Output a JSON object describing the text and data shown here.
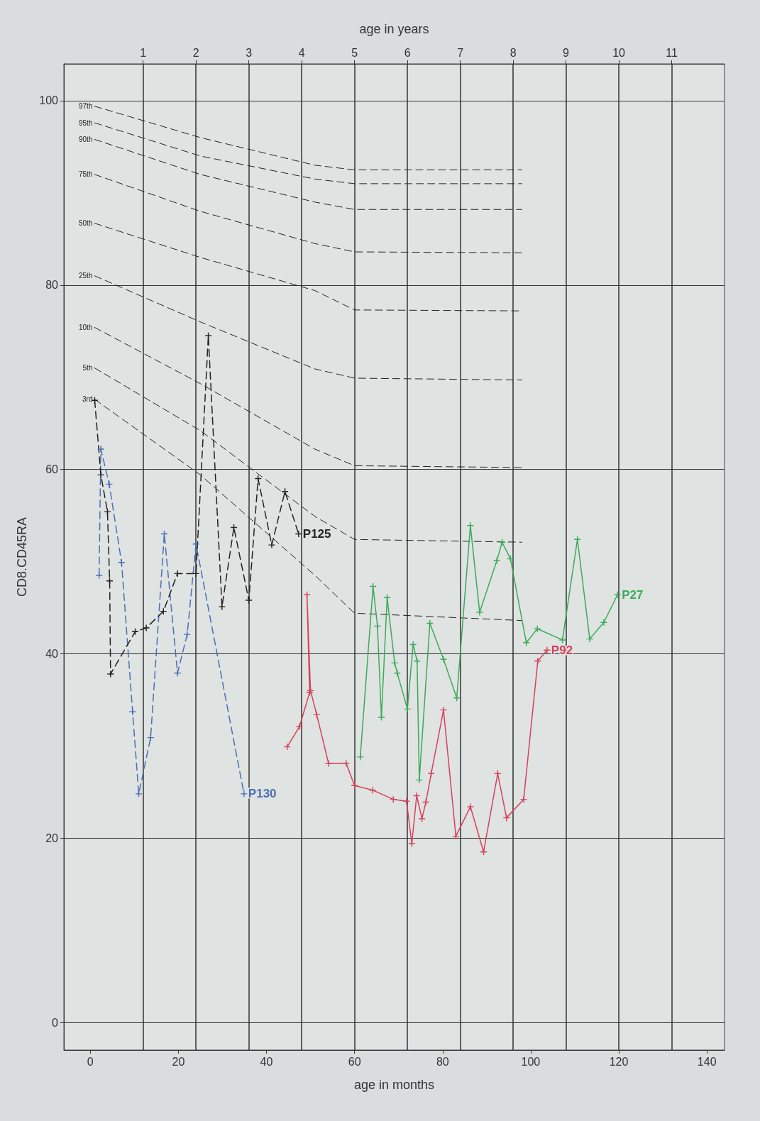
{
  "chart_data": {
    "type": "line",
    "xlabel": "age in months",
    "ylabel": "CD8.CD45RA",
    "x2label": "age in years",
    "xlim": [
      -6,
      144
    ],
    "xticks": [
      0,
      20,
      40,
      60,
      80,
      100,
      120,
      140
    ],
    "x2lim": [
      -0.5,
      12
    ],
    "x2ticks": [
      1,
      2,
      3,
      4,
      5,
      6,
      7,
      8,
      9,
      10,
      11
    ],
    "ylim": [
      -3,
      104
    ],
    "yticks": [
      0,
      20,
      40,
      60,
      80,
      100
    ],
    "grid": true,
    "series": [
      {
        "name": "97th",
        "color": "#222222",
        "line_style": "dashed",
        "marker": "none",
        "x": [
          1,
          25,
          51,
          60,
          98
        ],
        "values": [
          99.4,
          96,
          93,
          92.5,
          92.5
        ]
      },
      {
        "name": "95th",
        "color": "#222222",
        "line_style": "dashed",
        "marker": "none",
        "x": [
          1,
          25,
          51,
          60,
          98
        ],
        "values": [
          97.6,
          94,
          91.5,
          91,
          91
        ]
      },
      {
        "name": "90th",
        "color": "#222222",
        "line_style": "dashed",
        "marker": "none",
        "x": [
          1,
          25,
          51,
          60,
          98
        ],
        "values": [
          95.8,
          92,
          89,
          88.2,
          88.2
        ]
      },
      {
        "name": "75th",
        "color": "#222222",
        "line_style": "dashed",
        "marker": "none",
        "x": [
          1,
          25,
          51,
          60,
          98
        ],
        "values": [
          92,
          88,
          84.5,
          83.6,
          83.5
        ]
      },
      {
        "name": "50th",
        "color": "#222222",
        "line_style": "dashed",
        "marker": "none",
        "x": [
          1,
          25,
          51,
          60,
          98
        ],
        "values": [
          86.7,
          83,
          79.4,
          77.3,
          77.2
        ]
      },
      {
        "name": "25th",
        "color": "#222222",
        "line_style": "dashed",
        "marker": "none",
        "x": [
          1,
          25,
          51,
          60,
          98
        ],
        "values": [
          81,
          76,
          70.9,
          69.9,
          69.7
        ]
      },
      {
        "name": "10th",
        "color": "#222222",
        "line_style": "dashed",
        "marker": "none",
        "x": [
          1,
          25,
          51,
          60,
          98
        ],
        "values": [
          75.4,
          69.3,
          62.2,
          60.4,
          60.2
        ]
      },
      {
        "name": "5th",
        "color": "#222222",
        "line_style": "dashed",
        "marker": "none",
        "x": [
          1,
          25,
          51,
          60,
          98
        ],
        "values": [
          71,
          64.2,
          54.9,
          52.4,
          52.1
        ]
      },
      {
        "name": "3rd",
        "color": "#222222",
        "line_style": "dashed",
        "marker": "none",
        "x": [
          1,
          25,
          51,
          60,
          98
        ],
        "values": [
          67.6,
          59.4,
          48.5,
          44.4,
          43.6
        ]
      },
      {
        "name": "P130",
        "color": "#4a6fb5",
        "line_style": "dashed",
        "marker": "cross",
        "x": [
          2,
          2.4,
          4.3,
          7.1,
          9.6,
          11.0,
          13.7,
          16.8,
          19.8,
          22.0,
          24.0,
          34.9
        ],
        "values": [
          48.5,
          62.2,
          58.4,
          49.9,
          33.7,
          24.8,
          30.9,
          53.0,
          37.9,
          42.1,
          51.9,
          24.8
        ]
      },
      {
        "name": "P125",
        "color": "#222222",
        "line_style": "dashed",
        "marker": "cross",
        "x": [
          1,
          2.4,
          3.9,
          4.4,
          4.6,
          10.2,
          12.7,
          16.6,
          19.8,
          24.0,
          26.8,
          29.9,
          32.6,
          36.0,
          38.1,
          41.2,
          44.2,
          47.3
        ],
        "values": [
          67.5,
          59.4,
          55.4,
          47.9,
          37.8,
          42.4,
          42.8,
          44.6,
          48.7,
          48.7,
          74.5,
          45.1,
          53.7,
          45.8,
          59.0,
          51.8,
          57.6,
          53.0
        ]
      },
      {
        "name": "P92",
        "color": "#d9405a",
        "line_style": "solid",
        "marker": "cross",
        "x": [
          44.7,
          47.5,
          49.8,
          49.2,
          50.0,
          51.4,
          54.1,
          58.1,
          60,
          64.1,
          68.8,
          71.8,
          73.0,
          74.1,
          75.3,
          76.2,
          77.4,
          80.2,
          83.0,
          86.3,
          89.3,
          92.5,
          94.5,
          98.4,
          101.6,
          103.7
        ],
        "values": [
          29.9,
          32.1,
          35.8,
          46.4,
          36.0,
          33.4,
          28.1,
          28.1,
          25.7,
          25.2,
          24.2,
          24.0,
          19.4,
          24.6,
          22.1,
          23.9,
          27.0,
          33.9,
          20.2,
          23.4,
          18.5,
          27.0,
          22.2,
          24.2,
          39.2,
          40.4
        ]
      },
      {
        "name": "P27",
        "color": "#3daa5a",
        "line_style": "solid",
        "marker": "cross",
        "x": [
          61.3,
          64.2,
          65.2,
          66.1,
          67.4,
          69.1,
          69.7,
          72.0,
          73.3,
          74.2,
          74.7,
          77.1,
          80.2,
          83.2,
          86.3,
          88.4,
          92.3,
          93.5,
          95.4,
          99.0,
          101.5,
          107.2,
          110.6,
          113.4,
          116.6,
          119.7
        ],
        "values": [
          28.8,
          47.3,
          43.0,
          33.1,
          46.1,
          39.0,
          37.9,
          34.0,
          41.0,
          39.2,
          26.3,
          43.3,
          39.4,
          35.2,
          53.9,
          44.5,
          50.1,
          52.1,
          50.3,
          41.2,
          42.7,
          41.5,
          52.4,
          41.6,
          43.4,
          46.4
        ]
      }
    ]
  }
}
